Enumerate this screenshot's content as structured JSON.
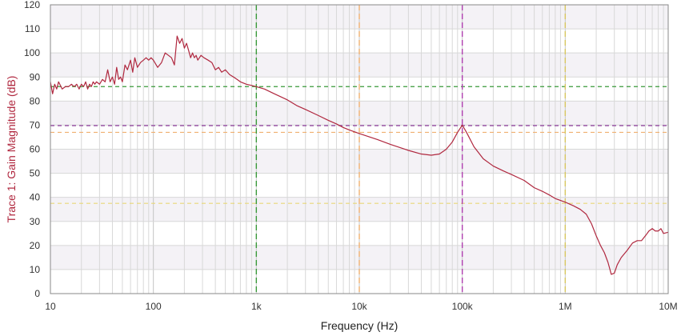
{
  "chart_data": {
    "type": "line",
    "title": "",
    "xlabel": "Frequency (Hz)",
    "ylabel": "Trace 1: Gain Magnitude (dB)",
    "x_scale": "log",
    "xlim": [
      10,
      10000000
    ],
    "ylim": [
      0,
      120
    ],
    "grid": true,
    "x_tick_values": [
      10,
      100,
      1000,
      10000,
      100000,
      1000000,
      10000000
    ],
    "x_tick_labels": [
      "10",
      "100",
      "1k",
      "10k",
      "100k",
      "1M",
      "10M"
    ],
    "y_tick_values": [
      0,
      10,
      20,
      30,
      40,
      50,
      60,
      70,
      80,
      90,
      100,
      110,
      120
    ],
    "y_tick_labels": [
      "0",
      "10",
      "20",
      "30",
      "40",
      "50",
      "60",
      "70",
      "80",
      "90",
      "100",
      "110",
      "120"
    ],
    "series": [
      {
        "color": "#b0283f",
        "points": [
          [
            10,
            88
          ],
          [
            10.5,
            83
          ],
          [
            11,
            87
          ],
          [
            11.5,
            85
          ],
          [
            12,
            88
          ],
          [
            13,
            85
          ],
          [
            14,
            86
          ],
          [
            15,
            86
          ],
          [
            16,
            87
          ],
          [
            17,
            86
          ],
          [
            18,
            87
          ],
          [
            19,
            85
          ],
          [
            20,
            87
          ],
          [
            21,
            86
          ],
          [
            22,
            88
          ],
          [
            23,
            85
          ],
          [
            24,
            87
          ],
          [
            25,
            86
          ],
          [
            26,
            88
          ],
          [
            27,
            87
          ],
          [
            28,
            88
          ],
          [
            30,
            87
          ],
          [
            32,
            89
          ],
          [
            34,
            88
          ],
          [
            36,
            93
          ],
          [
            38,
            88
          ],
          [
            40,
            90
          ],
          [
            42,
            87
          ],
          [
            44,
            94
          ],
          [
            46,
            89
          ],
          [
            48,
            90
          ],
          [
            50,
            88
          ],
          [
            53,
            95
          ],
          [
            56,
            93
          ],
          [
            60,
            97
          ],
          [
            63,
            92
          ],
          [
            66,
            98
          ],
          [
            70,
            94
          ],
          [
            75,
            96
          ],
          [
            80,
            97
          ],
          [
            85,
            98
          ],
          [
            90,
            97
          ],
          [
            95,
            98
          ],
          [
            100,
            97
          ],
          [
            110,
            94
          ],
          [
            120,
            96
          ],
          [
            130,
            100
          ],
          [
            140,
            99
          ],
          [
            150,
            98
          ],
          [
            160,
            95
          ],
          [
            170,
            107
          ],
          [
            180,
            104
          ],
          [
            190,
            106
          ],
          [
            200,
            102
          ],
          [
            210,
            104
          ],
          [
            220,
            101
          ],
          [
            230,
            98
          ],
          [
            240,
            100
          ],
          [
            250,
            98
          ],
          [
            260,
            99
          ],
          [
            270,
            97
          ],
          [
            290,
            99
          ],
          [
            310,
            98
          ],
          [
            340,
            97
          ],
          [
            370,
            96
          ],
          [
            400,
            93
          ],
          [
            430,
            94
          ],
          [
            460,
            92
          ],
          [
            500,
            93
          ],
          [
            550,
            91
          ],
          [
            600,
            90
          ],
          [
            650,
            89
          ],
          [
            700,
            88
          ],
          [
            800,
            87
          ],
          [
            900,
            86.5
          ],
          [
            1000,
            86
          ],
          [
            1200,
            85
          ],
          [
            1500,
            83
          ],
          [
            2000,
            80.5
          ],
          [
            2500,
            78
          ],
          [
            3000,
            76.5
          ],
          [
            4000,
            74
          ],
          [
            5000,
            72
          ],
          [
            6000,
            70.5
          ],
          [
            7000,
            69
          ],
          [
            8000,
            68
          ],
          [
            10000,
            66.5
          ],
          [
            15000,
            64
          ],
          [
            20000,
            62
          ],
          [
            30000,
            59.5
          ],
          [
            40000,
            58
          ],
          [
            50000,
            57.5
          ],
          [
            60000,
            58
          ],
          [
            70000,
            60
          ],
          [
            80000,
            63
          ],
          [
            90000,
            67
          ],
          [
            100000,
            70
          ],
          [
            110000,
            67
          ],
          [
            130000,
            61
          ],
          [
            160000,
            56
          ],
          [
            200000,
            53
          ],
          [
            250000,
            51
          ],
          [
            300000,
            49.5
          ],
          [
            400000,
            47
          ],
          [
            500000,
            44
          ],
          [
            600000,
            42.5
          ],
          [
            700000,
            41
          ],
          [
            800000,
            39.5
          ],
          [
            1000000,
            38
          ],
          [
            1200000,
            36.5
          ],
          [
            1400000,
            35
          ],
          [
            1600000,
            33
          ],
          [
            1800000,
            29
          ],
          [
            2000000,
            24
          ],
          [
            2200000,
            20
          ],
          [
            2400000,
            17
          ],
          [
            2600000,
            13
          ],
          [
            2800000,
            8
          ],
          [
            3000000,
            8.5
          ],
          [
            3200000,
            12
          ],
          [
            3500000,
            15
          ],
          [
            4000000,
            18
          ],
          [
            4500000,
            21
          ],
          [
            5000000,
            22
          ],
          [
            5500000,
            22
          ],
          [
            6000000,
            24
          ],
          [
            6500000,
            26
          ],
          [
            7000000,
            27
          ],
          [
            7500000,
            26
          ],
          [
            8000000,
            26
          ],
          [
            8500000,
            27
          ],
          [
            9000000,
            25
          ],
          [
            10000000,
            25.5
          ]
        ]
      }
    ],
    "h_markers": [
      {
        "y": 86,
        "color": "#3a9a3a"
      },
      {
        "y": 69.8,
        "color": "#8a3a9a"
      },
      {
        "y": 67,
        "color": "#f0b070"
      },
      {
        "y": 37.5,
        "color": "#e8d878"
      }
    ],
    "v_markers": [
      {
        "x": 1000,
        "color": "#3a9a3a"
      },
      {
        "x": 10000,
        "color": "#f0b070"
      },
      {
        "x": 100000,
        "color": "#b040b0"
      },
      {
        "x": 1000000,
        "color": "#d8c860"
      }
    ],
    "colors": {
      "trace": "#b0283f",
      "ylabel": "#b0283f",
      "xlabel": "#222222",
      "band_fill": "#f4f2f6",
      "grid_minor": "#d8d8d8",
      "grid_major": "#c4c4c4"
    }
  }
}
